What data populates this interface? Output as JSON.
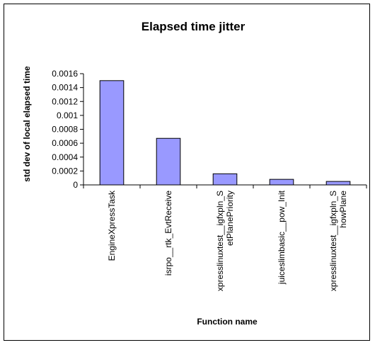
{
  "chart_data": {
    "type": "bar",
    "title": "Elapsed time jitter",
    "xlabel": "Function name",
    "ylabel": "std dev of local elapsed time",
    "ylim": [
      0,
      0.0016
    ],
    "yticks": [
      "0",
      "0.0002",
      "0.0004",
      "0.0006",
      "0.0008",
      "0.001",
      "0.0012",
      "0.0014",
      "0.0016"
    ],
    "grid": false,
    "bar_color": "#9999ff",
    "categories": [
      {
        "label": "EngineXpressTask",
        "lines": [
          "EngineXpressTask"
        ]
      },
      {
        "label": "isrpo__rtk_EvtReceive",
        "lines": [
          "isrpo__rtk_EvtReceive"
        ]
      },
      {
        "label": "xpresslinuxtest__igfxpln_SetPlanePriority",
        "lines": [
          "xpresslinuxtest__igfxpln_S",
          "etPlanePriority"
        ]
      },
      {
        "label": "juiceslimbasic__pow_Init",
        "lines": [
          "juiceslimbasic__pow_Init"
        ]
      },
      {
        "label": "xpresslinuxtest__igfxpln_ShowPlane",
        "lines": [
          "xpresslinuxtest__igfxpln_S",
          "howPlane"
        ]
      }
    ],
    "values": [
      0.0015,
      0.00067,
      0.00016,
      8e-05,
      5e-05
    ]
  }
}
